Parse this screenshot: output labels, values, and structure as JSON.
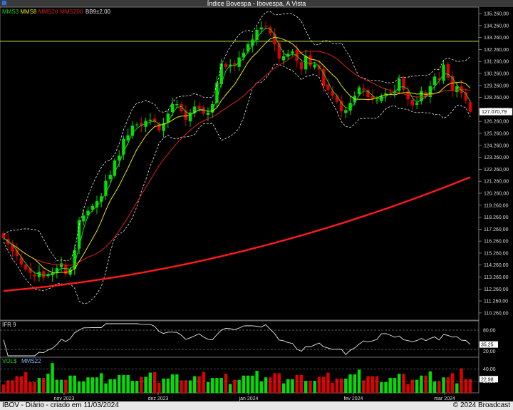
{
  "window": {
    "title": "Índice Bovespa - Ibovespa, A Vista"
  },
  "legend": {
    "items": [
      {
        "label": "MMS3",
        "color": "#22d022"
      },
      {
        "label": "MMS8",
        "color": "#e8e800"
      },
      {
        "label": "MMS20",
        "color": "#e02020"
      },
      {
        "label": "MMS200",
        "color": "#e02020"
      },
      {
        "label": "BB9±2,00",
        "color": "#e8e8e8"
      }
    ]
  },
  "colors": {
    "up": "#00e000",
    "down": "#e00000",
    "mms3": "#22d022",
    "mms8": "#e8e800",
    "mms20": "#e02020",
    "mms200": "#ff1a1a",
    "bb": "#e8e8e8"
  },
  "price_panel": {
    "current_price": "127.070,79",
    "hline_value": 132950,
    "y_ticks": [
      "135.260,00",
      "134.260,00",
      "133.260,00",
      "132.260,00",
      "131.260,00",
      "130.260,00",
      "129.260,00",
      "128.260,00",
      "127.260,00",
      "126.260,00",
      "125.260,00",
      "124.260,00",
      "123.260,00",
      "122.260,00",
      "121.260,00",
      "120.260,00",
      "119.260,00",
      "118.260,00",
      "117.260,00",
      "116.260,00",
      "115.260,00",
      "114.260,00",
      "113.260,00",
      "112.260,00",
      "111.260,00",
      "110.260,00"
    ]
  },
  "ifr_panel": {
    "label": "IFR 9",
    "ticks": [
      "80,00",
      "20,00"
    ],
    "current": "35,25"
  },
  "vol_panel": {
    "label": "VOL$",
    "ma_label": "MMS22",
    "ticks": [
      "40,00",
      "20,00"
    ],
    "current": "22,98"
  },
  "x_labels": [
    "nov 2023",
    "dez 2023",
    "jan 2024",
    "fev 2024",
    "mar 2024"
  ],
  "footer": {
    "left": "IBOV - Diário - criado em 11/03/2024",
    "right": "© 2024 Broadcast"
  },
  "chart_data": [
    {
      "type": "candlestick",
      "title": "Índice Bovespa - Ibovespa, A Vista",
      "x_range": [
        "2023-10-04",
        "2024-03-11"
      ],
      "ylim": [
        109660,
        135800
      ],
      "close_approx": [
        116500,
        116000,
        115400,
        115000,
        114300,
        113900,
        113600,
        113300,
        113700,
        113200,
        113500,
        113600,
        114000,
        114400,
        113500,
        113900,
        115500,
        118000,
        118400,
        118800,
        119200,
        119600,
        120000,
        121300,
        121800,
        123000,
        123400,
        124800,
        125100,
        125900,
        126000,
        125900,
        126300,
        126400,
        126200,
        125500,
        126100,
        126900,
        127700,
        127700,
        127100,
        126400,
        127000,
        127500,
        127300,
        126900,
        127000,
        127700,
        129500,
        131100,
        130800,
        131000,
        130900,
        131600,
        132000,
        132700,
        133100,
        133900,
        134100,
        134200,
        133600,
        132700,
        131500,
        131700,
        131900,
        132100,
        131300,
        130600,
        131700,
        130900,
        131000,
        130600,
        129200,
        128900,
        128400,
        127900,
        127100,
        127200,
        127800,
        128400,
        129100,
        128900,
        128300,
        128100,
        128000,
        128400,
        128600,
        128700,
        128800,
        129800,
        128900,
        128100,
        127600,
        127800,
        128800,
        128300,
        129200,
        130000,
        129700,
        131000,
        129900,
        128800,
        129200,
        128600,
        128000,
        127070
      ],
      "mms200_range": [
        112100,
        121600
      ]
    },
    {
      "type": "line",
      "title": "IFR 9",
      "ylim": [
        0,
        100
      ],
      "ticks": [
        20,
        80
      ],
      "last": 35.25
    },
    {
      "type": "bar",
      "title": "VOL$",
      "ticks": [
        20,
        40
      ],
      "ma": "MMS22",
      "last": 22.98
    }
  ]
}
